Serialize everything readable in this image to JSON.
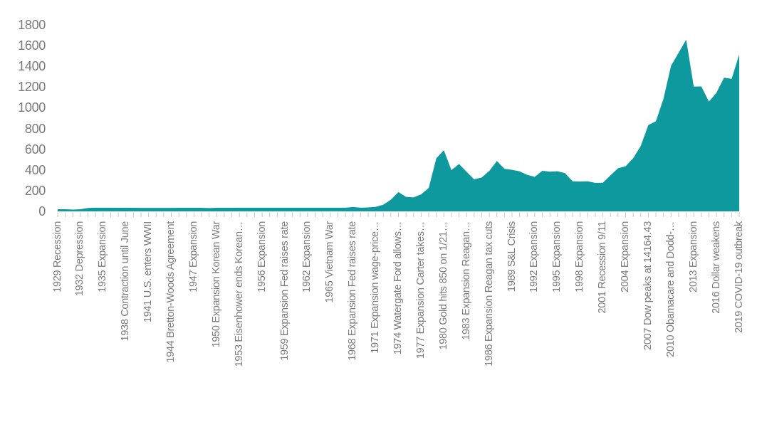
{
  "chart_data": {
    "type": "area",
    "title": "",
    "xlabel": "",
    "ylabel": "",
    "ylim": [
      0,
      1800
    ],
    "yticks": [
      0,
      200,
      400,
      600,
      800,
      1000,
      1200,
      1400,
      1600,
      1800
    ],
    "grid": false,
    "legend": false,
    "fill_color": "#0e999e",
    "tick_color": "#c6c6c6",
    "axis_label_color": "#7a7a7a",
    "x": [
      1929,
      1930,
      1931,
      1932,
      1933,
      1934,
      1935,
      1936,
      1937,
      1938,
      1939,
      1940,
      1941,
      1942,
      1943,
      1944,
      1945,
      1946,
      1947,
      1948,
      1949,
      1950,
      1951,
      1952,
      1953,
      1954,
      1955,
      1956,
      1957,
      1958,
      1959,
      1960,
      1961,
      1962,
      1963,
      1964,
      1965,
      1966,
      1967,
      1968,
      1969,
      1970,
      1971,
      1972,
      1973,
      1974,
      1975,
      1976,
      1977,
      1978,
      1979,
      1980,
      1981,
      1982,
      1983,
      1984,
      1985,
      1986,
      1987,
      1988,
      1989,
      1990,
      1991,
      1992,
      1993,
      1994,
      1995,
      1996,
      1997,
      1998,
      1999,
      2000,
      2001,
      2002,
      2003,
      2004,
      2005,
      2006,
      2007,
      2008,
      2009,
      2010,
      2011,
      2012,
      2013,
      2014,
      2015,
      2016,
      2017,
      2018,
      2019
    ],
    "values": [
      20.63,
      20.65,
      17.06,
      20.69,
      32.32,
      34.94,
      34.84,
      34.87,
      34.79,
      34.85,
      34.42,
      33.85,
      33.85,
      33.85,
      33.85,
      33.85,
      34.71,
      34.71,
      34.71,
      34.71,
      31.69,
      34.72,
      34.72,
      34.6,
      34.84,
      35.04,
      35.03,
      34.99,
      34.95,
      35.1,
      35.1,
      35.27,
      35.25,
      35.23,
      35.09,
      35.1,
      35.12,
      35.13,
      35.2,
      41.9,
      35.17,
      37.38,
      43.63,
      64.7,
      112.25,
      186.5,
      140.25,
      134.5,
      165.0,
      226.0,
      512.0,
      589.75,
      397.5,
      456.9,
      382.4,
      309.0,
      327.0,
      390.9,
      486.5,
      410.15,
      401.0,
      386.2,
      353.15,
      333.0,
      391.75,
      383.25,
      387.0,
      369.25,
      290.2,
      287.8,
      290.25,
      274.45,
      276.5,
      347.2,
      416.25,
      435.6,
      513.0,
      632.0,
      833.75,
      869.75,
      1087.5,
      1405.5,
      1531.0,
      1657.5,
      1204.5,
      1206.0,
      1060.0,
      1145.9,
      1291.0,
      1279.0,
      1514.75
    ],
    "x_tick_interval_years": 1,
    "x_label_interval_years": 3,
    "x_labels": [
      {
        "year": 1929,
        "label": "1929 Recession"
      },
      {
        "year": 1932,
        "label": "1932 Depression"
      },
      {
        "year": 1935,
        "label": "1935 Expansion"
      },
      {
        "year": 1938,
        "label": "1938 Contraction until June"
      },
      {
        "year": 1941,
        "label": "1941 U.S. enters WWII"
      },
      {
        "year": 1944,
        "label": "1944 Bretton-Woods Agreement"
      },
      {
        "year": 1947,
        "label": "1947 Expansion"
      },
      {
        "year": 1950,
        "label": "1950 Expansion Korean War"
      },
      {
        "year": 1953,
        "label": "1953 Eisenhower ends Korean…"
      },
      {
        "year": 1956,
        "label": "1956 Expansion"
      },
      {
        "year": 1959,
        "label": "1959 Expansion Fed raises rate"
      },
      {
        "year": 1962,
        "label": "1962 Expansion"
      },
      {
        "year": 1965,
        "label": "1965 Vietnam War"
      },
      {
        "year": 1968,
        "label": "1968 Expansion Fed raises rate"
      },
      {
        "year": 1971,
        "label": "1971 Expansion wage-price…"
      },
      {
        "year": 1974,
        "label": "1974 Watergate Ford allows…"
      },
      {
        "year": 1977,
        "label": "1977 Expansion Carter takes…"
      },
      {
        "year": 1980,
        "label": "1980 Gold hits 850 on 1/21…"
      },
      {
        "year": 1983,
        "label": "1983 Expansion Reagan…"
      },
      {
        "year": 1986,
        "label": "1986 Expansion Reagan tax cuts"
      },
      {
        "year": 1989,
        "label": "1989 S&L Crisis"
      },
      {
        "year": 1992,
        "label": "1992 Expansion"
      },
      {
        "year": 1995,
        "label": "1995 Expansion"
      },
      {
        "year": 1998,
        "label": "1998 Expansion"
      },
      {
        "year": 2001,
        "label": "2001 Recession 9/11"
      },
      {
        "year": 2004,
        "label": "2004 Expansion"
      },
      {
        "year": 2007,
        "label": "2007 Dow peaks at 14164.43"
      },
      {
        "year": 2010,
        "label": "2010 Obamacare and Dodd-…"
      },
      {
        "year": 2013,
        "label": "2013 Expansion"
      },
      {
        "year": 2016,
        "label": "2016 Dollar weakens"
      },
      {
        "year": 2019,
        "label": "2019 COVID-19 outbreak"
      }
    ]
  }
}
